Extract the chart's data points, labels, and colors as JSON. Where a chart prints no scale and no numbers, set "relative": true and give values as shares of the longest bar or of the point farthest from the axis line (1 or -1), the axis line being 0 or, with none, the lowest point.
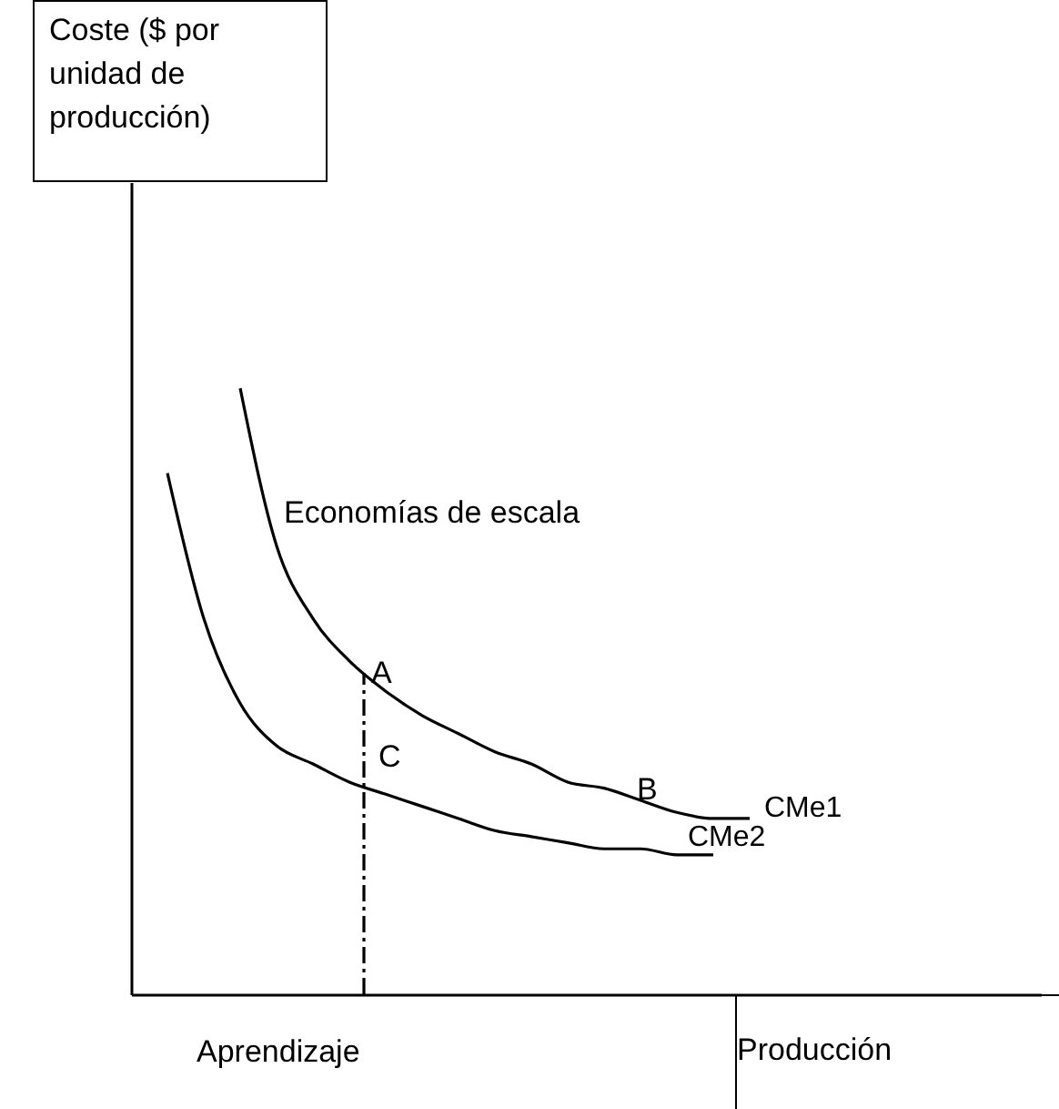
{
  "chart_data": {
    "type": "line",
    "relative": true,
    "xlabel": "Producción",
    "categories": [
      null,
      null,
      null,
      null,
      null,
      null,
      null,
      null,
      null,
      null,
      null,
      null,
      null,
      null,
      null,
      null,
      null,
      null,
      null,
      null,
      null,
      null,
      null,
      null,
      null,
      null
    ],
    "series": [
      {
        "name": "CMe1",
        "color": "#000000",
        "values": [
          null,
          null,
          null,
          1.0,
          0.74,
          0.62,
          0.55,
          0.5,
          0.46,
          0.43,
          0.4,
          0.38,
          0.35,
          0.34,
          0.32,
          0.3,
          0.29,
          0.29,
          null,
          null,
          null,
          null,
          null,
          null,
          null,
          null
        ]
      },
      {
        "name": "CMe2",
        "color": "#000000",
        "values": [
          null,
          0.86,
          0.62,
          0.48,
          0.41,
          0.38,
          0.35,
          0.33,
          0.31,
          0.29,
          0.27,
          0.26,
          0.25,
          0.24,
          0.24,
          0.23,
          0.23,
          null,
          null,
          null,
          null,
          null,
          null,
          null,
          null,
          null
        ]
      }
    ],
    "annotations": [
      "Coste ($ por unidad de producción)",
      "Economías de escala",
      "A",
      "B",
      "C",
      "Aprendizaje"
    ],
    "grid": false,
    "marker": "none",
    "line_style": "solid"
  }
}
